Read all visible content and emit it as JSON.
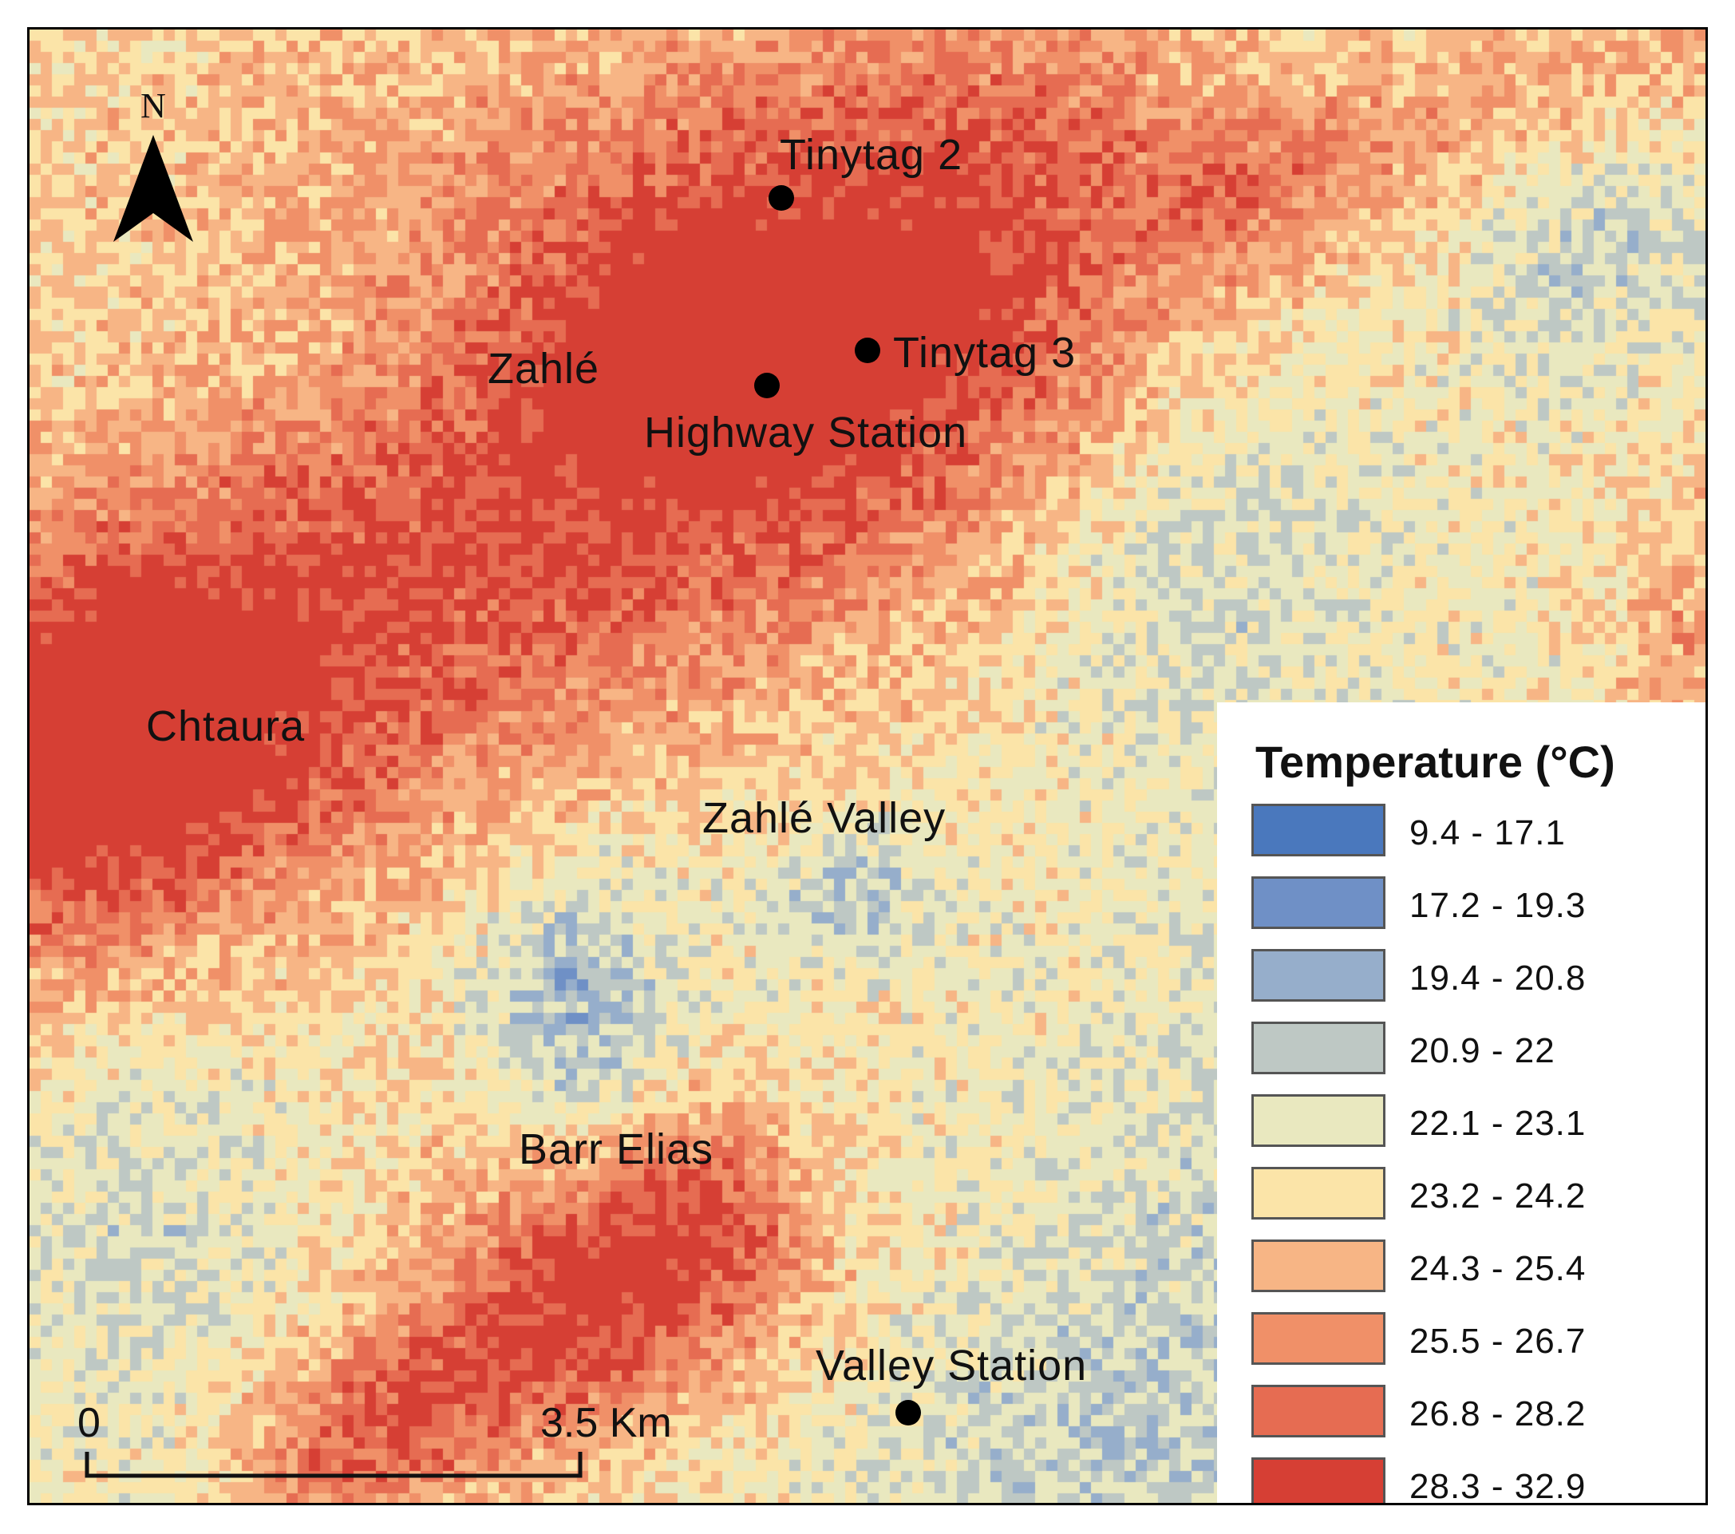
{
  "map": {
    "north_label": "N",
    "places": [
      {
        "id": "zahle",
        "label": "Zahlé"
      },
      {
        "id": "chtaura",
        "label": "Chtaura"
      },
      {
        "id": "zahle-valley",
        "label": "Zahlé Valley"
      },
      {
        "id": "barr-elias",
        "label": "Barr Elias"
      }
    ],
    "stations": [
      {
        "id": "tinytag-2",
        "label": "Tinytag 2"
      },
      {
        "id": "tinytag-3",
        "label": "Tinytag 3"
      },
      {
        "id": "highway-station",
        "label": "Highway Station"
      },
      {
        "id": "valley-station",
        "label": "Valley Station"
      }
    ],
    "scale": {
      "start_label": "0",
      "end_label": "3.5 Km"
    }
  },
  "legend": {
    "title": "Temperature (°C)",
    "classes": [
      {
        "label": "9.4 - 17.1",
        "color": "#4a78bd"
      },
      {
        "label": "17.2 - 19.3",
        "color": "#6f90c6"
      },
      {
        "label": "19.4 - 20.8",
        "color": "#96aecb"
      },
      {
        "label": "20.9 - 22",
        "color": "#bec8c4"
      },
      {
        "label": "22.1 - 23.1",
        "color": "#e9e8bf"
      },
      {
        "label": "23.2 - 24.2",
        "color": "#fbe4a8"
      },
      {
        "label": "24.3 - 25.4",
        "color": "#f7b585"
      },
      {
        "label": "25.5 - 26.7",
        "color": "#f09068"
      },
      {
        "label": "26.8 - 28.2",
        "color": "#e66c52"
      },
      {
        "label": "28.3 - 32.9",
        "color": "#d63f34"
      }
    ]
  }
}
